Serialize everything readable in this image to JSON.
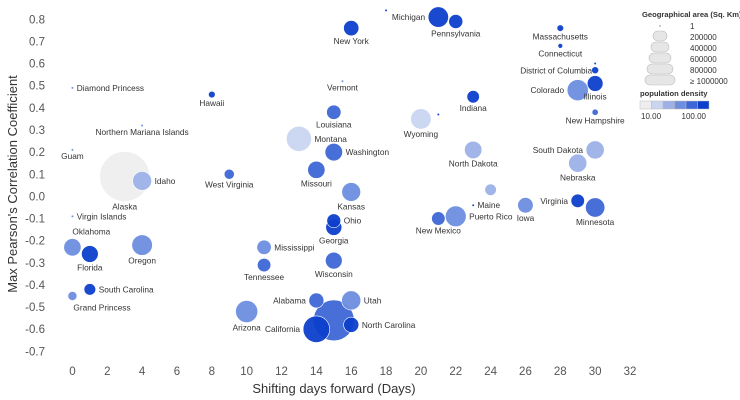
{
  "chart_data": {
    "type": "scatter",
    "xlabel": "Shifting days forward (Days)",
    "ylabel": "Max Pearson's Correlation Coefficient",
    "xlim": [
      -1,
      32
    ],
    "ylim": [
      -0.73,
      0.86
    ],
    "xticks": [
      0,
      2,
      4,
      6,
      8,
      10,
      12,
      14,
      16,
      18,
      20,
      22,
      24,
      26,
      28,
      30,
      32
    ],
    "yticks": [
      -0.7,
      -0.6,
      -0.5,
      -0.4,
      -0.3,
      -0.2,
      -0.1,
      0.0,
      0.1,
      0.2,
      0.3,
      0.4,
      0.5,
      0.6,
      0.7,
      0.8
    ],
    "ytick_labels": [
      "-0.7",
      "-0.6",
      "-0.5",
      "-0.4",
      "-0.3",
      "-0.2",
      "-0.1",
      "0.0",
      "0.1",
      "0.2",
      "0.3",
      "0.4",
      "0.5",
      "0.6",
      "0.7",
      "0.8"
    ],
    "grid": false,
    "size_legend": {
      "title": "Geographical area (Sq. Km)",
      "entries": [
        "1",
        "200000",
        "400000",
        "600000",
        "800000",
        "≥ 1000000"
      ]
    },
    "color_legend": {
      "title": "population density",
      "min_label": "10.00",
      "max_label": "100.00",
      "colors": [
        "#eeeeee",
        "#c9d5f1",
        "#9db1e7",
        "#6d8ddf",
        "#3e66d6",
        "#0d3fcb"
      ]
    },
    "points": [
      {
        "name": "New York",
        "x": 16,
        "y": 0.76,
        "area": 141000,
        "density": 160,
        "label": "New York",
        "label_pos": "below"
      },
      {
        "name": "",
        "x": 18,
        "y": 0.84,
        "area": 1000,
        "density": 120,
        "label": "",
        "label_pos": "none"
      },
      {
        "name": "Michigan",
        "x": 21,
        "y": 0.81,
        "area": 250000,
        "density": 68,
        "label": "Michigan",
        "label_pos": "left"
      },
      {
        "name": "Pennsylvania",
        "x": 22,
        "y": 0.79,
        "area": 119000,
        "density": 110,
        "label": "Pennsylvania",
        "label_pos": "below"
      },
      {
        "name": "Massachusetts",
        "x": 28,
        "y": 0.76,
        "area": 27000,
        "density": 330,
        "label": "Massachusetts",
        "label_pos": "below"
      },
      {
        "name": "Connecticut",
        "x": 28,
        "y": 0.68,
        "area": 14000,
        "density": 280,
        "label": "Connecticut",
        "label_pos": "below"
      },
      {
        "name": "",
        "x": 30,
        "y": 0.57,
        "area": 30000,
        "density": 400,
        "label": "",
        "label_pos": "none"
      },
      {
        "name": "District of Columbia",
        "x": 30,
        "y": 0.6,
        "area": 100,
        "density": 4000,
        "label": "District of Columbia",
        "label_pos": "leftbelow"
      },
      {
        "name": "Illinois",
        "x": 30,
        "y": 0.51,
        "area": 150000,
        "density": 90,
        "label": "Illinois",
        "label_pos": "below"
      },
      {
        "name": "Colorado",
        "x": 29,
        "y": 0.48,
        "area": 270000,
        "density": 20,
        "label": "Colorado",
        "label_pos": "left"
      },
      {
        "name": "New Hampshire",
        "x": 30,
        "y": 0.38,
        "area": 24000,
        "density": 60,
        "label": "New Hampshire",
        "label_pos": "below"
      },
      {
        "name": "Indiana",
        "x": 23,
        "y": 0.45,
        "area": 94000,
        "density": 72,
        "label": "Indiana",
        "label_pos": "below"
      },
      {
        "name": "",
        "x": 21,
        "y": 0.37,
        "area": 2000,
        "density": 100,
        "label": "",
        "label_pos": "none"
      },
      {
        "name": "Wyoming",
        "x": 20,
        "y": 0.35,
        "area": 253000,
        "density": 2,
        "label": "Wyoming",
        "label_pos": "below"
      },
      {
        "name": "North Dakota",
        "x": 23,
        "y": 0.21,
        "area": 183000,
        "density": 4,
        "label": "North Dakota",
        "label_pos": "below"
      },
      {
        "name": "South Dakota",
        "x": 30,
        "y": 0.21,
        "area": 199000,
        "density": 4,
        "label": "South Dakota",
        "label_pos": "left"
      },
      {
        "name": "Nebraska",
        "x": 29,
        "y": 0.15,
        "area": 200000,
        "density": 9,
        "label": "Nebraska",
        "label_pos": "below"
      },
      {
        "name": "Virginia",
        "x": 29,
        "y": -0.02,
        "area": 110000,
        "density": 80,
        "label": "Virginia",
        "label_pos": "left"
      },
      {
        "name": "Minnesota",
        "x": 30,
        "y": -0.05,
        "area": 225000,
        "density": 27,
        "label": "Minnesota",
        "label_pos": "below"
      },
      {
        "name": "Iowa",
        "x": 26,
        "y": -0.04,
        "area": 145000,
        "density": 22,
        "label": "Iowa",
        "label_pos": "below"
      },
      {
        "name": "",
        "x": 24,
        "y": 0.03,
        "area": 80000,
        "density": 5,
        "label": "",
        "label_pos": "none"
      },
      {
        "name": "Maine",
        "x": 23,
        "y": -0.04,
        "area": 1500,
        "density": 200,
        "label": "Maine",
        "label_pos": "right"
      },
      {
        "name": "Puerto Rico",
        "x": 22,
        "y": -0.09,
        "area": 260000,
        "density": 15,
        "label": "Puerto Rico",
        "label_pos": "right"
      },
      {
        "name": "New Mexico",
        "x": 21,
        "y": -0.1,
        "area": 110000,
        "density": 40,
        "label": "New Mexico",
        "label_pos": "below"
      },
      {
        "name": "Michigan",
        "x": 16,
        "y": 0.76,
        "area": 1,
        "density": 0,
        "label": "",
        "label_pos": "none"
      },
      {
        "name": "Vermont",
        "x": 15.5,
        "y": 0.52,
        "area": 2000,
        "density": 20,
        "label": "Vermont",
        "label_pos": "below"
      },
      {
        "name": "Louisiana",
        "x": 15,
        "y": 0.38,
        "area": 125000,
        "density": 40,
        "label": "Louisiana",
        "label_pos": "below"
      },
      {
        "name": "Montana",
        "x": 13,
        "y": 0.26,
        "area": 380000,
        "density": 3,
        "label": "Montana",
        "label_pos": "right"
      },
      {
        "name": "Washington",
        "x": 15,
        "y": 0.2,
        "area": 185000,
        "density": 45,
        "label": "Washington",
        "label_pos": "right"
      },
      {
        "name": "Missouri",
        "x": 14,
        "y": 0.12,
        "area": 180000,
        "density": 35,
        "label": "Missouri",
        "label_pos": "below"
      },
      {
        "name": "Kansas",
        "x": 16,
        "y": 0.02,
        "area": 213000,
        "density": 12,
        "label": "Kansas",
        "label_pos": "below"
      },
      {
        "name": "Ohio",
        "x": 15,
        "y": -0.11,
        "area": 116000,
        "density": 110,
        "label": "Ohio",
        "label_pos": "right"
      },
      {
        "name": "Georgia",
        "x": 15,
        "y": -0.14,
        "area": 154000,
        "density": 70,
        "label": "Georgia",
        "label_pos": "below"
      },
      {
        "name": "Mississippi",
        "x": 11,
        "y": -0.23,
        "area": 125000,
        "density": 10,
        "label": "Mississippi",
        "label_pos": "right"
      },
      {
        "name": "Tennessee",
        "x": 11,
        "y": -0.31,
        "area": 109000,
        "density": 60,
        "label": "Tennessee",
        "label_pos": "below"
      },
      {
        "name": "Wisconsin",
        "x": 15,
        "y": -0.29,
        "area": 170000,
        "density": 40,
        "label": "Wisconsin",
        "label_pos": "below"
      },
      {
        "name": "Alabama",
        "x": 14,
        "y": -0.47,
        "area": 135000,
        "density": 36,
        "label": "Alabama",
        "label_pos": "left"
      },
      {
        "name": "Utah",
        "x": 16,
        "y": -0.47,
        "area": 220000,
        "density": 15,
        "label": "Utah",
        "label_pos": "right"
      },
      {
        "name": "California",
        "x": 15,
        "y": -0.56,
        "area": 1000000,
        "density": 35,
        "label": "",
        "label_pos": "none"
      },
      {
        "name": "California",
        "x": 14,
        "y": -0.6,
        "area": 424000,
        "density": 100,
        "label": "California",
        "label_pos": "left"
      },
      {
        "name": "North Carolina",
        "x": 16,
        "y": -0.58,
        "area": 139000,
        "density": 80,
        "label": "North Carolina",
        "label_pos": "right"
      },
      {
        "name": "Arizona",
        "x": 10,
        "y": -0.52,
        "area": 295000,
        "density": 25,
        "label": "Arizona",
        "label_pos": "below"
      },
      {
        "name": "West Virginia",
        "x": 9,
        "y": 0.1,
        "area": 62000,
        "density": 30,
        "label": "West Virginia",
        "label_pos": "below"
      },
      {
        "name": "Hawaii",
        "x": 8,
        "y": 0.46,
        "area": 28000,
        "density": 85,
        "label": "Hawaii",
        "label_pos": "below"
      },
      {
        "name": "Northern Mariana Islands",
        "x": 4,
        "y": 0.32,
        "area": 500,
        "density": 20,
        "label": "Northern Mariana Islands",
        "label_pos": "below"
      },
      {
        "name": "Diamond Princess",
        "x": 0,
        "y": 0.49,
        "area": 1,
        "density": 10,
        "label": "Diamond Princess",
        "label_pos": "right"
      },
      {
        "name": "Guam",
        "x": 0,
        "y": 0.21,
        "area": 500,
        "density": 20,
        "label": "Guam",
        "label_pos": "below"
      },
      {
        "name": "Alaska",
        "x": 3,
        "y": 0.09,
        "area": 1500000,
        "density": 1,
        "label": "Alaska",
        "label_pos": "below"
      },
      {
        "name": "Idaho",
        "x": 4,
        "y": 0.07,
        "area": 216000,
        "density": 8,
        "label": "Idaho",
        "label_pos": "right"
      },
      {
        "name": "Virgin Islands",
        "x": 0,
        "y": -0.09,
        "area": 500,
        "density": 20,
        "label": "Virgin Islands",
        "label_pos": "right"
      },
      {
        "name": "Oklahoma",
        "x": 0,
        "y": -0.23,
        "area": 181000,
        "density": 22,
        "label": "Oklahoma",
        "label_pos": "rightabove"
      },
      {
        "name": "Florida",
        "x": 1,
        "y": -0.26,
        "area": 170000,
        "density": 150,
        "label": "Florida",
        "label_pos": "below"
      },
      {
        "name": "Oregon",
        "x": 4,
        "y": -0.22,
        "area": 255000,
        "density": 16,
        "label": "Oregon",
        "label_pos": "below"
      },
      {
        "name": "South Carolina",
        "x": 1,
        "y": -0.42,
        "area": 82000,
        "density": 65,
        "label": "South Carolina",
        "label_pos": "right"
      },
      {
        "name": "Grand Princess",
        "x": 0,
        "y": -0.45,
        "area": 50000,
        "density": 10,
        "label": "Grand Princess",
        "label_pos": "rightbelow"
      }
    ]
  }
}
